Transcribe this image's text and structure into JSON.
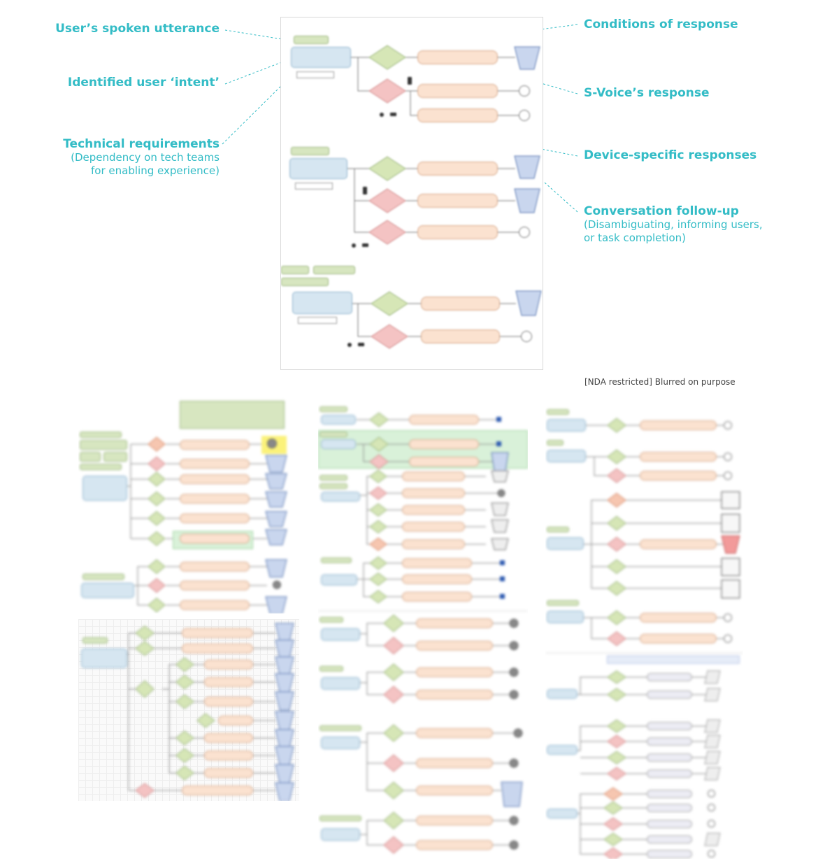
{
  "annotations": {
    "utterance": {
      "title": "User’s spoken utterance"
    },
    "intent": {
      "title": "Identified user ‘intent’"
    },
    "tech": {
      "title": "Technical requirements",
      "sub1": "(Dependency on tech teams",
      "sub2": "for enabling experience)"
    },
    "conditions": {
      "title": "Conditions of response"
    },
    "svoice": {
      "title": "S-Voice’s response"
    },
    "device": {
      "title": "Device-specific responses"
    },
    "followup": {
      "title": "Conversation follow-up",
      "sub1": "(Disambiguating, informing users,",
      "sub2": "or task completion)"
    }
  },
  "nda_note": "[NDA restricted] Blurred on purpose",
  "colors": {
    "accent": "#33bcc6",
    "utterance_fill": "#d7e6c0",
    "intent_fill": "#d6e6f1",
    "response_fill": "#fbe2d0",
    "condition_green": "#d6e6b6",
    "condition_red": "#f4c3c3",
    "followup_fill": "#c9d6ee"
  }
}
